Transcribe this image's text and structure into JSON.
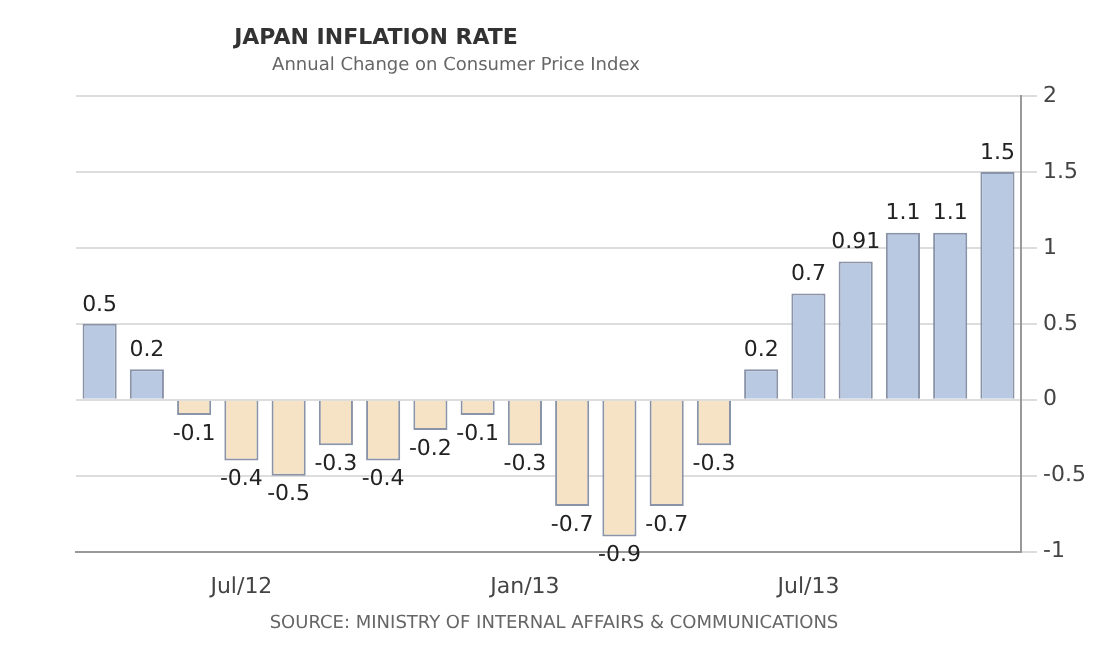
{
  "chart_data": {
    "type": "bar",
    "title": "JAPAN INFLATION RATE",
    "subtitle": "Annual Change on Consumer Price Index",
    "categories": [
      null,
      null,
      null,
      "Jul/12",
      null,
      null,
      null,
      null,
      null,
      "Jan/13",
      null,
      null,
      null,
      null,
      null,
      "Jul/13",
      null,
      null,
      null,
      null
    ],
    "values": [
      0.5,
      0.2,
      -0.1,
      -0.4,
      -0.5,
      -0.3,
      -0.4,
      -0.2,
      -0.1,
      -0.3,
      -0.7,
      -0.9,
      -0.7,
      -0.3,
      0.2,
      0.7,
      0.91,
      1.1,
      1.1,
      1.5
    ],
    "colors": [
      "#b9c9e2",
      "#b9c9e2",
      "#f6e2c4",
      "#f6e2c4",
      "#f6e2c4",
      "#f6e2c4",
      "#f6e2c4",
      "#f6e2c4",
      "#f6e2c4",
      "#f6e2c4",
      "#f6e2c4",
      "#f6e2c4",
      "#f6e2c4",
      "#f6e2c4",
      "#b9c9e2",
      "#b9c9e2",
      "#b9c9e2",
      "#b9c9e2",
      "#b9c9e2",
      "#b9c9e2"
    ],
    "ylim": [
      -1,
      2
    ],
    "yticks": [
      -1,
      -0.5,
      0,
      0.5,
      1,
      1.5,
      2
    ],
    "grid": "y",
    "data_labels": true,
    "annotations": [
      "SOURCE: MINISTRY OF INTERNAL AFFAIRS & COMMUNICATIONS"
    ]
  }
}
